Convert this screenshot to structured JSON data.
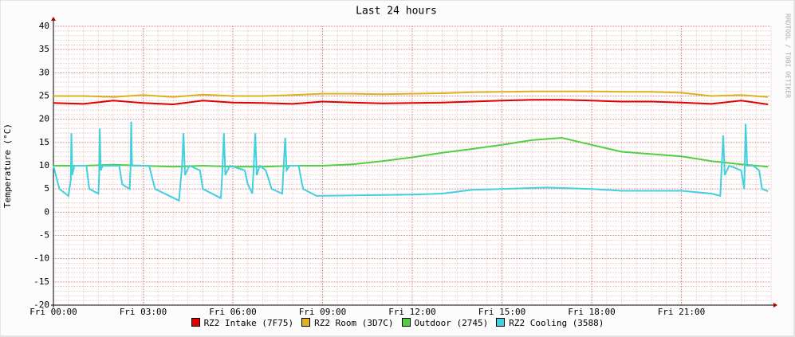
{
  "chart_data": {
    "type": "line",
    "title": "Last 24 hours",
    "y_label": "Temperature (°C)",
    "watermark": "RRDTOOL / TOBI OETIKER",
    "x": [
      0,
      1,
      2,
      3,
      4,
      5,
      6,
      7,
      8,
      9,
      10,
      11,
      12,
      13,
      14,
      15,
      16,
      17,
      18,
      19,
      20,
      21,
      22,
      23,
      23.9
    ],
    "xlim": [
      0,
      24
    ],
    "xticks": [
      {
        "value": 0,
        "label": "Fri 00:00"
      },
      {
        "value": 3,
        "label": "Fri 03:00"
      },
      {
        "value": 6,
        "label": "Fri 06:00"
      },
      {
        "value": 9,
        "label": "Fri 09:00"
      },
      {
        "value": 12,
        "label": "Fri 12:00"
      },
      {
        "value": 15,
        "label": "Fri 15:00"
      },
      {
        "value": 18,
        "label": "Fri 18:00"
      },
      {
        "value": 21,
        "label": "Fri 21:00"
      }
    ],
    "ylim": [
      -20,
      40
    ],
    "yticks": [
      -20,
      -15,
      -10,
      -5,
      0,
      5,
      10,
      15,
      20,
      25,
      30,
      35,
      40
    ],
    "grid": true,
    "series": [
      {
        "name": "RZ2 Intake (7F75)",
        "color": "#e00000",
        "values": [
          23.5,
          23.3,
          24,
          23.5,
          23.2,
          24,
          23.6,
          23.5,
          23.3,
          23.8,
          23.6,
          23.4,
          23.5,
          23.6,
          23.8,
          24,
          24.2,
          24.2,
          24,
          23.8,
          23.8,
          23.6,
          23.3,
          24,
          23.2
        ]
      },
      {
        "name": "RZ2 Room (3D7C)",
        "color": "#e0b020",
        "values": [
          25,
          25,
          24.8,
          25.2,
          24.8,
          25.3,
          25,
          25,
          25.2,
          25.5,
          25.5,
          25.4,
          25.5,
          25.6,
          25.8,
          25.9,
          26,
          26,
          26,
          25.9,
          25.9,
          25.7,
          25,
          25.2,
          24.8
        ]
      },
      {
        "name": "Outdoor (2745)",
        "color": "#50d040",
        "values": [
          10,
          10,
          10.2,
          10,
          9.8,
          10,
          9.8,
          9.8,
          10,
          10,
          10.3,
          11,
          11.8,
          12.8,
          13.6,
          14.5,
          15.5,
          16,
          14.5,
          13,
          12.5,
          12,
          11,
          10.3,
          9.8
        ]
      },
      {
        "name": "RZ2 Cooling (3588)",
        "color": "#40d0e0",
        "x": [
          0,
          0.2,
          0.5,
          0.58,
          0.6,
          0.63,
          0.7,
          1.1,
          1.2,
          1.5,
          1.53,
          1.55,
          1.58,
          1.65,
          2.2,
          2.3,
          2.55,
          2.58,
          2.6,
          2.63,
          2.8,
          3.2,
          3.4,
          4.2,
          4.3,
          4.35,
          4.4,
          4.55,
          4.9,
          5.0,
          5.6,
          5.65,
          5.7,
          5.75,
          5.9,
          6.4,
          6.5,
          6.65,
          6.7,
          6.75,
          6.8,
          6.9,
          7.1,
          7.3,
          7.65,
          7.7,
          7.75,
          7.8,
          7.9,
          8.2,
          8.35,
          8.8,
          12,
          13,
          14,
          15,
          16.5,
          18,
          19,
          21,
          22,
          22.3,
          22.35,
          22.4,
          22.45,
          22.6,
          23,
          23.1,
          23.15,
          23.2,
          23.4,
          23.6,
          23.7,
          23.9
        ],
        "values": [
          10,
          5,
          3.5,
          7,
          17,
          8,
          10,
          10,
          5,
          4,
          8,
          18,
          9,
          10,
          10,
          6,
          5,
          10,
          19.5,
          10,
          10,
          10,
          5,
          2.5,
          10,
          17,
          8,
          10,
          9,
          5,
          3,
          9,
          17,
          8,
          10,
          9,
          6,
          4,
          10,
          17,
          8,
          10,
          9,
          5,
          4,
          10,
          16,
          9,
          10,
          10,
          5,
          3.5,
          3.8,
          4,
          4.8,
          5,
          5.3,
          5,
          4.6,
          4.6,
          4,
          3.5,
          10,
          16.5,
          8,
          10,
          9,
          5,
          19,
          10,
          10,
          9,
          5,
          4.5
        ]
      }
    ]
  }
}
